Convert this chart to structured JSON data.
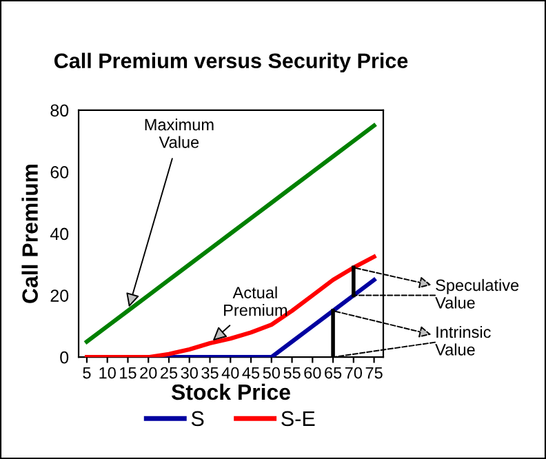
{
  "chart_data": {
    "type": "line",
    "title": "Call Premium versus Security Price",
    "xlabel": "Stock Price",
    "ylabel": "Call Premium",
    "categories": [
      "5",
      "10",
      "15",
      "20",
      "25",
      "30",
      "35",
      "40",
      "45",
      "50",
      "55",
      "60",
      "65",
      "70",
      "75"
    ],
    "series": [
      {
        "color": "#008000",
        "values": [
          5,
          10,
          15,
          20,
          25,
          30,
          35,
          40,
          45,
          50,
          55,
          60,
          65,
          70,
          75
        ]
      },
      {
        "name": "S",
        "color": "#0000a0",
        "values": [
          null,
          null,
          null,
          0,
          0,
          0,
          0,
          0,
          0,
          0,
          5,
          10,
          15,
          20,
          25
        ]
      },
      {
        "name": "S-E",
        "color": "#ff0000",
        "values": [
          0,
          0,
          0,
          0,
          1,
          2.5,
          4.5,
          6,
          8,
          10.5,
          15,
          20,
          25,
          29,
          32.5
        ]
      }
    ],
    "ylim": [
      0,
      80
    ],
    "yticks": [
      0,
      20,
      40,
      60,
      80
    ],
    "grid": false,
    "legend": "bottom",
    "marker": "none",
    "line_style": "solid",
    "annotations": [
      {
        "text": "Maximum Value",
        "x": "15",
        "y": 15
      },
      {
        "text": "Actual Premium",
        "x": "35",
        "y": 4.5
      },
      {
        "text": "Speculative Value",
        "x": "70",
        "y": 29
      },
      {
        "text": "Intrinsic Value",
        "x": "65",
        "y": 15
      }
    ]
  }
}
